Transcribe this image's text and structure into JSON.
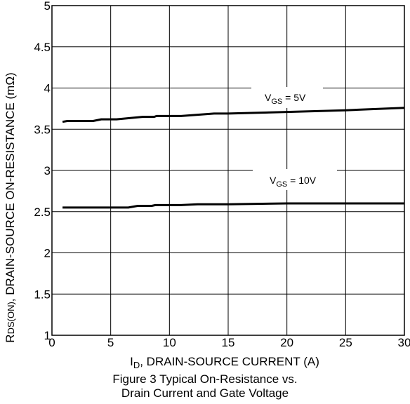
{
  "chart_data": {
    "type": "line",
    "xlabel_main": "I",
    "xlabel_sub": "D",
    "xlabel_rest": ", DRAIN-SOURCE CURRENT (A)",
    "ylabel_main": "R",
    "ylabel_sub": "DS(ON)",
    "ylabel_rest": ", DRAIN-SOURCE ON-RESISTANCE (mΩ)",
    "xlim": [
      0,
      30
    ],
    "ylim": [
      1,
      5
    ],
    "x_ticks": [
      0,
      5,
      10,
      15,
      20,
      25,
      30
    ],
    "x_tick_labels": [
      "0",
      "5",
      "10",
      "15",
      "20",
      "25",
      "30"
    ],
    "y_ticks": [
      1,
      1.5,
      2,
      2.5,
      3,
      3.5,
      4,
      4.5,
      5
    ],
    "y_tick_labels": [
      "1",
      "1.5",
      "2",
      "2.5",
      "3",
      "3.5",
      "4",
      "4.5",
      "5"
    ],
    "grid": true,
    "line_color": "#000000",
    "series": [
      {
        "label_main": "V",
        "label_sub": "GS",
        "label_rest": " = 5V",
        "points": [
          [
            0.9,
            3.59
          ],
          [
            1.3,
            3.6
          ],
          [
            3.5,
            3.6
          ],
          [
            4.2,
            3.62
          ],
          [
            5.5,
            3.62
          ],
          [
            7,
            3.64
          ],
          [
            7.7,
            3.65
          ],
          [
            8.7,
            3.65
          ],
          [
            8.9,
            3.66
          ],
          [
            11,
            3.66
          ],
          [
            12.8,
            3.68
          ],
          [
            13.8,
            3.69
          ],
          [
            15,
            3.69
          ],
          [
            20,
            3.71
          ],
          [
            25,
            3.73
          ],
          [
            30,
            3.76
          ]
        ]
      },
      {
        "label_main": "V",
        "label_sub": "GS",
        "label_rest": " = 10V",
        "points": [
          [
            0.9,
            2.55
          ],
          [
            6.5,
            2.55
          ],
          [
            7.3,
            2.57
          ],
          [
            8.5,
            2.57
          ],
          [
            8.8,
            2.58
          ],
          [
            11,
            2.58
          ],
          [
            12.4,
            2.59
          ],
          [
            15,
            2.59
          ],
          [
            20,
            2.6
          ],
          [
            25,
            2.6
          ],
          [
            30,
            2.6
          ]
        ]
      }
    ]
  },
  "caption": {
    "line1": "Figure 3 Typical On-Resistance vs.",
    "line2": "Drain Current and Gate Voltage"
  }
}
